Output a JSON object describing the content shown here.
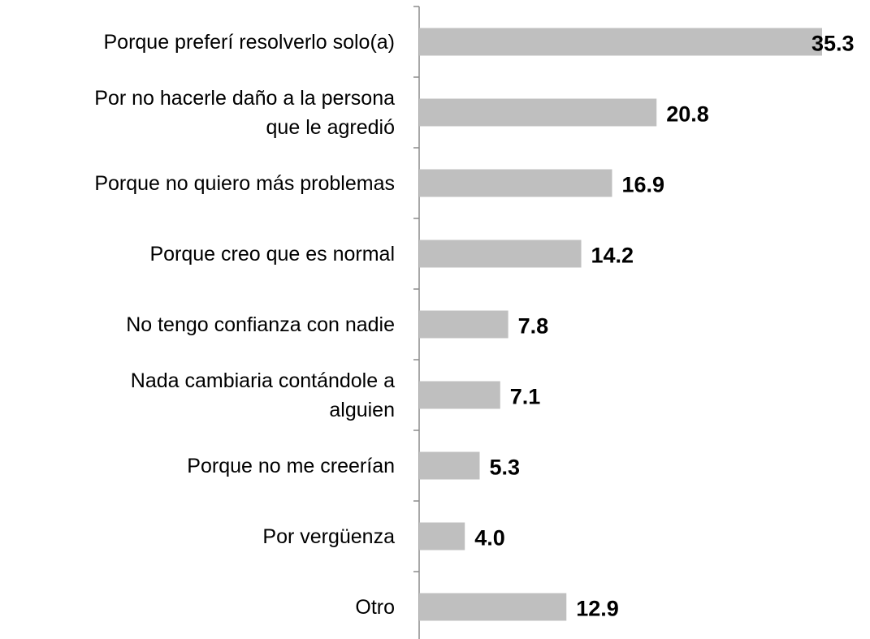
{
  "chart_data": {
    "type": "bar",
    "orientation": "horizontal",
    "categories": [
      "Porque preferí resolverlo solo(a)",
      "Por no hacerle daño a la persona\nque le agredió",
      "Porque no quiero más problemas",
      "Porque creo que es normal",
      "No tengo confianza con nadie",
      "Nada cambiaria contándole a\nalguien",
      "Porque no me creerían",
      "Por vergüenza",
      "Otro"
    ],
    "values": [
      35.3,
      20.8,
      16.9,
      14.2,
      7.8,
      7.1,
      5.3,
      4.0,
      12.9
    ],
    "value_labels": [
      "35.3",
      "20.8",
      "16.9",
      "14.2",
      "7.8",
      "7.1",
      "5.3",
      "4.0",
      "12.9"
    ],
    "color": "#bfbfbf"
  }
}
